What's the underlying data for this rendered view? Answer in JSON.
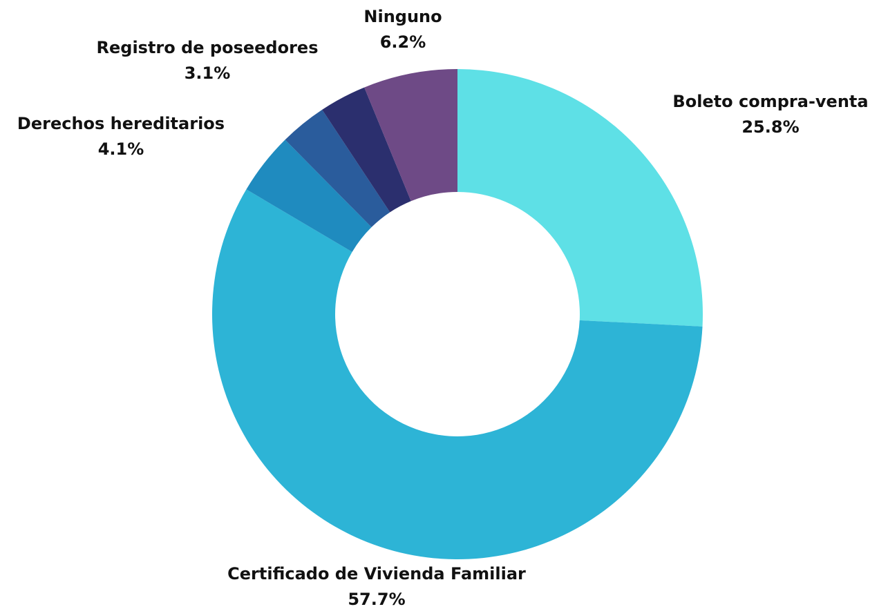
{
  "chart_data": {
    "type": "donut",
    "categories": [
      "Boleto compra-venta",
      "Certificado de Vivienda Familiar",
      "Derechos hereditarios",
      null,
      "Registro de poseedores",
      "Ninguno"
    ],
    "values": [
      25.8,
      57.7,
      4.1,
      3.1,
      3.1,
      6.2
    ],
    "value_labels": [
      "25.8%",
      "57.7%",
      "4.1%",
      null,
      "3.1%",
      "6.2%"
    ],
    "colors": [
      "#5ee0e6",
      "#2db4d6",
      "#1f8bbf",
      "#2a5c9c",
      "#2b2f6e",
      "#6e4a86"
    ]
  }
}
